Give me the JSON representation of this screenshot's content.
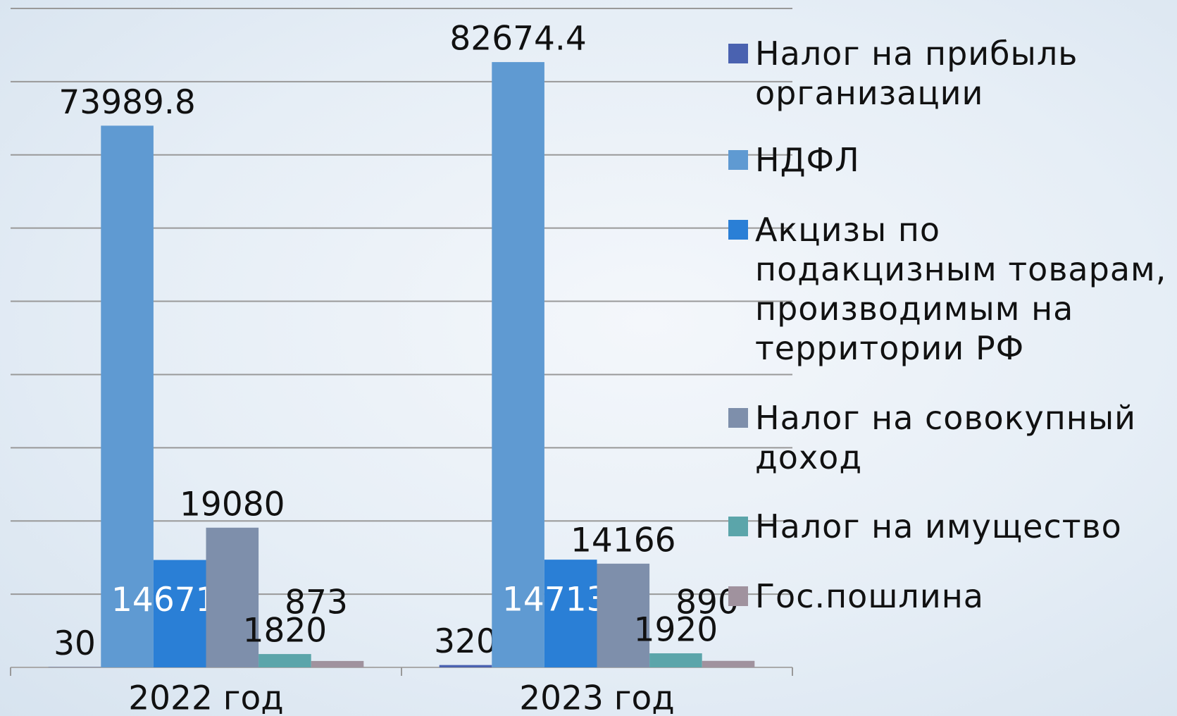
{
  "chart_data": {
    "type": "bar",
    "categories": [
      "2022 год",
      "2023 год"
    ],
    "series": [
      {
        "name": "Налог на прибыль организации",
        "color": "#4a62b0",
        "values": [
          30,
          320
        ]
      },
      {
        "name": "НДФЛ",
        "color": "#5f9ad2",
        "values": [
          73989.8,
          82674.4
        ]
      },
      {
        "name": "Акцизы по подакцизным товарам, производимым  на территории РФ",
        "color": "#2a7fd6",
        "values": [
          14671.2,
          14713.6
        ]
      },
      {
        "name": "Налог на совокупный доход",
        "color": "#7e8fab",
        "values": [
          19080,
          14166
        ]
      },
      {
        "name": "Налог на имущество",
        "color": "#5ba5aa",
        "values": [
          1820,
          1920
        ]
      },
      {
        "name": "Гос.пошлина",
        "color": "#a0929e",
        "values": [
          873,
          890
        ]
      }
    ],
    "ylim": [
      0,
      90000
    ],
    "yticks": [
      0,
      10000,
      20000,
      30000,
      40000,
      50000,
      60000,
      70000,
      80000,
      90000
    ],
    "grid": true,
    "legend": "right"
  }
}
